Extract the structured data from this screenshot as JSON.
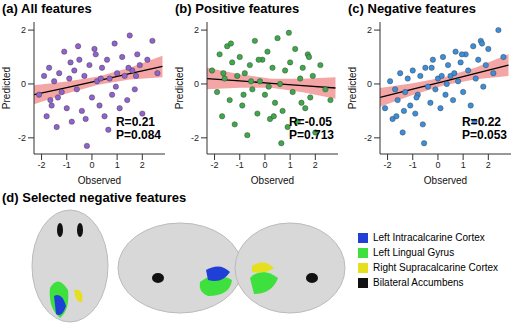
{
  "chart_data": [
    {
      "type": "scatter",
      "title": "(a) All features",
      "x_label": "Observed",
      "y_label": "Predicted",
      "color": "#8f62cc",
      "xlim": [
        -2.3,
        2.9
      ],
      "ylim": [
        -2.6,
        2.3
      ],
      "xticks": [
        -2,
        -1,
        0,
        1,
        2
      ],
      "yticks": [
        -2,
        0,
        2
      ],
      "annotations": [
        "R=0.21",
        "P=0.084"
      ],
      "x": [
        -2.1,
        -1.9,
        -1.8,
        -1.7,
        -1.6,
        -1.5,
        -1.4,
        -1.3,
        -1.2,
        -1.1,
        -1.0,
        -0.9,
        -0.8,
        -0.7,
        -0.6,
        -0.5,
        -0.4,
        -0.3,
        -0.2,
        -0.1,
        0.0,
        0.1,
        0.2,
        0.3,
        0.4,
        0.5,
        0.6,
        0.7,
        0.8,
        0.9,
        1.0,
        1.1,
        1.2,
        1.3,
        1.4,
        1.5,
        1.6,
        1.7,
        1.8,
        1.9,
        2.0,
        2.2,
        2.4,
        2.6,
        -1.35,
        -0.85,
        -0.25,
        0.35,
        0.95,
        1.45,
        -0.55,
        0.65,
        1.75,
        -1.65,
        0.15
      ],
      "values": [
        -0.4,
        0.3,
        -1.2,
        0.6,
        -0.8,
        0.1,
        -1.6,
        0.4,
        -0.3,
        1.2,
        -0.9,
        0.2,
        -1.4,
        0.5,
        -0.2,
        0.9,
        -1.0,
        0.3,
        -2.3,
        0.7,
        -0.5,
        1.3,
        0.1,
        -0.8,
        0.6,
        -1.2,
        0.9,
        0.2,
        -0.4,
        1.5,
        0.4,
        -0.9,
        1.0,
        0.3,
        -0.6,
        1.8,
        0.5,
        -0.2,
        1.1,
        0.7,
        -1.1,
        0.9,
        1.6,
        0.4,
        -0.5,
        0.8,
        -1.3,
        0.2,
        -0.1,
        0.6,
        1.4,
        -1.7,
        0.3,
        -0.6,
        1.1
      ],
      "fit": {
        "x": [
          -2.3,
          -1.0,
          0.25,
          1.5,
          2.8
        ],
        "y": [
          -0.4,
          -0.132,
          0.125,
          0.383,
          0.65
        ],
        "lower": [
          -0.75,
          -0.352,
          -0.025,
          0.163,
          0.25
        ],
        "upper": [
          -0.05,
          0.088,
          0.275,
          0.603,
          1.05
        ]
      }
    },
    {
      "type": "scatter",
      "title": "(b) Positive features",
      "x_label": "Observed",
      "y_label": "Predicted",
      "color": "#3ea84a",
      "xlim": [
        -2.3,
        2.9
      ],
      "ylim": [
        -2.6,
        2.3
      ],
      "xticks": [
        -2,
        -1,
        0,
        1,
        2
      ],
      "yticks": [
        -2,
        0,
        2
      ],
      "annotations": [
        "R=-0.05",
        "P=0.713"
      ],
      "x": [
        -2.1,
        -1.9,
        -1.8,
        -1.7,
        -1.6,
        -1.5,
        -1.4,
        -1.3,
        -1.2,
        -1.1,
        -1.0,
        -0.9,
        -0.8,
        -0.7,
        -0.6,
        -0.5,
        -0.4,
        -0.3,
        -0.2,
        -0.1,
        0.0,
        0.1,
        0.2,
        0.3,
        0.4,
        0.5,
        0.6,
        0.7,
        0.8,
        0.9,
        1.0,
        1.1,
        1.2,
        1.3,
        1.4,
        1.5,
        1.6,
        1.7,
        1.8,
        1.9,
        2.0,
        2.2,
        2.4,
        2.6,
        -1.35,
        -0.85,
        -0.25,
        0.35,
        0.95,
        1.45,
        -0.55,
        0.65,
        1.75,
        -1.65,
        0.15
      ],
      "values": [
        0.5,
        -0.3,
        1.1,
        -1.2,
        0.2,
        1.4,
        -0.6,
        0.8,
        -1.5,
        0.3,
        1.0,
        -0.8,
        0.4,
        -1.9,
        0.7,
        -0.2,
        1.6,
        -1.1,
        0.1,
        0.9,
        -0.4,
        1.2,
        -1.3,
        0.6,
        -0.7,
        1.7,
        0.0,
        -1.0,
        0.5,
        -1.6,
        0.8,
        -0.3,
        1.3,
        -1.4,
        0.2,
        0.6,
        -0.9,
        1.1,
        -0.5,
        0.3,
        -1.8,
        0.7,
        -0.2,
        -0.6,
        1.5,
        -0.4,
        0.9,
        -1.2,
        1.9,
        -0.7,
        0.1,
        -2.2,
        1.0,
        0.4,
        -0.1
      ],
      "fit": {
        "x": [
          -2.3,
          -1.0,
          0.25,
          1.5,
          2.8
        ],
        "y": [
          0.2,
          0.111,
          0.025,
          -0.061,
          -0.15
        ],
        "lower": [
          -0.2,
          -0.139,
          -0.145,
          -0.311,
          -0.55
        ],
        "upper": [
          0.6,
          0.361,
          0.195,
          0.189,
          0.25
        ]
      }
    },
    {
      "type": "scatter",
      "title": "(c) Negative features",
      "x_label": "Observed",
      "y_label": "Predicted",
      "color": "#3d8ed8",
      "xlim": [
        -2.3,
        2.9
      ],
      "ylim": [
        -2.6,
        2.3
      ],
      "xticks": [
        -2,
        -1,
        0,
        1,
        2
      ],
      "yticks": [
        -2,
        0,
        2
      ],
      "annotations": [
        "R=0.22",
        "P=0.053"
      ],
      "x": [
        -2.1,
        -1.9,
        -1.8,
        -1.7,
        -1.6,
        -1.5,
        -1.4,
        -1.3,
        -1.2,
        -1.1,
        -1.0,
        -0.9,
        -0.8,
        -0.7,
        -0.6,
        -0.5,
        -0.4,
        -0.3,
        -0.2,
        -0.1,
        0.0,
        0.1,
        0.2,
        0.3,
        0.4,
        0.5,
        0.6,
        0.7,
        0.8,
        0.9,
        1.0,
        1.1,
        1.2,
        1.3,
        1.4,
        1.5,
        1.6,
        1.7,
        1.8,
        1.9,
        2.0,
        2.2,
        2.4,
        2.6,
        -1.35,
        -0.85,
        -0.25,
        0.35,
        0.95,
        1.45,
        -0.55,
        0.65,
        1.75,
        -1.65,
        0.15
      ],
      "values": [
        -0.9,
        0.1,
        -1.3,
        -0.2,
        -0.6,
        0.4,
        -1.8,
        -0.3,
        0.2,
        -0.8,
        0.5,
        -1.1,
        -0.4,
        0.3,
        -1.5,
        0.6,
        -0.1,
        -0.7,
        0.9,
        -0.2,
        0.2,
        -0.9,
        1.0,
        -0.4,
        0.7,
        0.3,
        -0.6,
        1.2,
        0.1,
        0.8,
        -0.3,
        1.1,
        0.5,
        -0.8,
        1.4,
        0.2,
        0.9,
        1.6,
        -0.1,
        0.7,
        1.3,
        0.4,
        2.0,
        1.0,
        -1.0,
        -0.5,
        0.6,
        0.0,
        1.1,
        -1.4,
        -2.2,
        0.4,
        1.5,
        -1.2,
        0.3
      ],
      "fit": {
        "x": [
          -2.3,
          -1.0,
          0.25,
          1.5,
          2.8
        ],
        "y": [
          -0.5,
          -0.194,
          0.1,
          0.394,
          0.7
        ],
        "lower": [
          -0.85,
          -0.414,
          -0.05,
          0.174,
          0.3
        ],
        "upper": [
          -0.15,
          0.026,
          0.25,
          0.614,
          1.1
        ]
      }
    }
  ],
  "panel_d": {
    "title": "(d) Selected negative features",
    "regions": [
      {
        "name": "Left Intracalcarine Cortex",
        "color": "#1f3fd6"
      },
      {
        "name": "Left Lingual Gyrus",
        "color": "#3ee03e"
      },
      {
        "name": "Right Supracalcarine Cortex",
        "color": "#e6df1e"
      },
      {
        "name": "Bilateral Accumbens",
        "color": "#111111"
      }
    ]
  }
}
